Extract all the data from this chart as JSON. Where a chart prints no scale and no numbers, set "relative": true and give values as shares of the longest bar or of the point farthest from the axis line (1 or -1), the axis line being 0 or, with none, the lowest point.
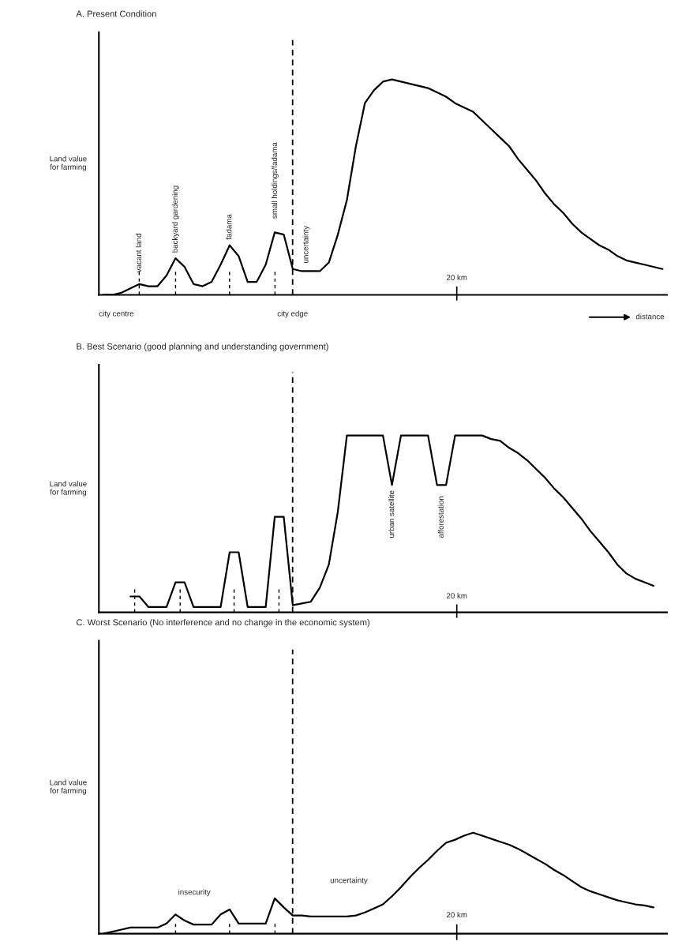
{
  "chart_data": [
    {
      "type": "line",
      "title": "A. Present Condition",
      "ylabel": "Land value\nfor farming",
      "relative": true,
      "marker": "none",
      "line_style": "solid",
      "categories": [
        null,
        null,
        null,
        null,
        null,
        null,
        null,
        null,
        null,
        null,
        null,
        null,
        null,
        null,
        null,
        null,
        null,
        null,
        null,
        null,
        null,
        null,
        null,
        null,
        null,
        null,
        null,
        null,
        null,
        null,
        null,
        null,
        null,
        null,
        null,
        null,
        null,
        null,
        null,
        null,
        null,
        null,
        null,
        null,
        null,
        null,
        null,
        null,
        null,
        null,
        null,
        null,
        null,
        null,
        null,
        null,
        null,
        null,
        null,
        null,
        null,
        null,
        null
      ],
      "series": [
        {
          "color": "#000000",
          "values": [
            0,
            0,
            0.01,
            0.03,
            0.05,
            0.04,
            0.04,
            0.09,
            0.17,
            0.13,
            0.05,
            0.04,
            0.06,
            0.14,
            0.23,
            0.18,
            0.06,
            0.06,
            0.14,
            0.29,
            0.28,
            0.12,
            0.11,
            0.11,
            0.11,
            0.15,
            0.28,
            0.44,
            0.69,
            0.89,
            0.95,
            0.99,
            1,
            0.99,
            0.98,
            0.97,
            0.96,
            0.94,
            0.92,
            0.89,
            0.87,
            0.85,
            0.81,
            0.77,
            0.73,
            0.69,
            0.63,
            0.58,
            0.53,
            0.47,
            0.42,
            0.38,
            0.33,
            0.29,
            0.26,
            0.23,
            0.21,
            0.18,
            0.16,
            0.15,
            0.14,
            0.13,
            0.12
          ]
        }
      ],
      "annotations": [
        "vacant land",
        "backyard gardening",
        "fadama",
        "small holdings/fadama",
        "uncertainty",
        "20 km",
        "city centre",
        "city edge",
        "distance"
      ]
    },
    {
      "type": "line",
      "title": "B. Best Scenario (good planning and understanding government)",
      "ylabel": "Land value\nfor farming",
      "relative": true,
      "marker": "none",
      "line_style": "solid",
      "categories": [
        null,
        null,
        null,
        null,
        null,
        null,
        null,
        null,
        null,
        null,
        null,
        null,
        null,
        null,
        null,
        null,
        null,
        null,
        null,
        null,
        null,
        null,
        null,
        null,
        null,
        null,
        null,
        null,
        null,
        null,
        null,
        null,
        null,
        null,
        null,
        null,
        null,
        null,
        null,
        null,
        null,
        null,
        null,
        null,
        null,
        null,
        null,
        null,
        null,
        null,
        null,
        null,
        null,
        null,
        null,
        null,
        null,
        null,
        null,
        null,
        null,
        null,
        null
      ],
      "series": [
        {
          "color": "#000000",
          "values": [
            null,
            null,
            null,
            0.09,
            0.09,
            0.03,
            0.03,
            0.03,
            0.17,
            0.17,
            0.03,
            0.03,
            0.03,
            0.03,
            0.34,
            0.34,
            0.03,
            0.03,
            0.03,
            0.54,
            0.54,
            0.04,
            0.05,
            0.06,
            0.14,
            0.27,
            0.57,
            1,
            1,
            1,
            1,
            1,
            0.72,
            1,
            1,
            1,
            1,
            0.72,
            0.72,
            1,
            1,
            1,
            1,
            0.98,
            0.97,
            0.93,
            0.9,
            0.86,
            0.81,
            0.76,
            0.7,
            0.65,
            0.59,
            0.53,
            0.46,
            0.4,
            0.34,
            0.27,
            0.22,
            0.19,
            0.17,
            0.15,
            null
          ]
        }
      ],
      "annotations": [
        "urban satellite",
        "afforestation",
        "20 km"
      ]
    },
    {
      "type": "line",
      "title": "C. Worst Scenario (No interference and no change in the economic system)",
      "ylabel": "Land value\nfor farming",
      "relative": true,
      "marker": "none",
      "line_style": "solid",
      "categories": [
        null,
        null,
        null,
        null,
        null,
        null,
        null,
        null,
        null,
        null,
        null,
        null,
        null,
        null,
        null,
        null,
        null,
        null,
        null,
        null,
        null,
        null,
        null,
        null,
        null,
        null,
        null,
        null,
        null,
        null,
        null,
        null,
        null,
        null,
        null,
        null,
        null,
        null,
        null,
        null,
        null,
        null,
        null,
        null,
        null,
        null,
        null,
        null,
        null,
        null,
        null,
        null,
        null,
        null,
        null,
        null,
        null,
        null,
        null,
        null,
        null,
        null,
        null
      ],
      "series": [
        {
          "color": "#000000",
          "values": [
            0,
            0.02,
            0.04,
            0.06,
            0.06,
            0.06,
            0.06,
            0.1,
            0.19,
            0.13,
            0.09,
            0.09,
            0.09,
            0.19,
            0.24,
            0.1,
            0.1,
            0.1,
            0.1,
            0.35,
            0.26,
            0.18,
            0.18,
            0.17,
            0.17,
            0.17,
            0.17,
            0.17,
            0.18,
            0.21,
            0.25,
            0.29,
            0.37,
            0.46,
            0.56,
            0.65,
            0.73,
            0.82,
            0.9,
            0.93,
            0.97,
            1,
            0.97,
            0.94,
            0.91,
            0.88,
            0.84,
            0.79,
            0.74,
            0.69,
            0.63,
            0.58,
            0.52,
            0.46,
            0.42,
            0.39,
            0.36,
            0.33,
            0.31,
            0.29,
            0.28,
            0.26,
            null
          ]
        }
      ],
      "annotations": [
        "insecurity",
        "uncertainty",
        "20 km"
      ]
    }
  ]
}
